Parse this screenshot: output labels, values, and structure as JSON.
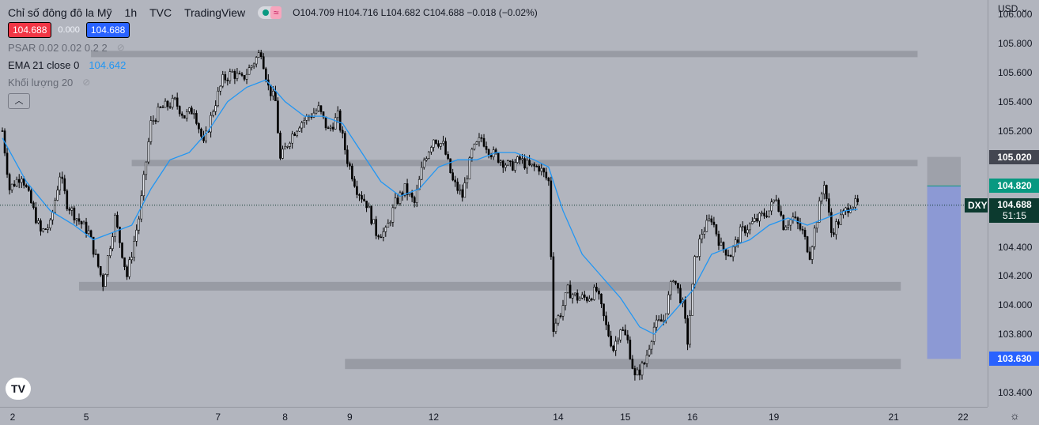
{
  "header": {
    "title": "Chỉ số đông đô la Mỹ",
    "interval": "1h",
    "source": "TVC",
    "publisher": "TradingView",
    "ohlc": "O104.709 H104.716 L104.682 C104.688 −0.018 (−0.02%)",
    "sell_price": "104.688",
    "spread": "0.000",
    "buy_price": "104.688"
  },
  "indicators": {
    "psar": "PSAR 0.02 0.02 0.2 2",
    "ema": "EMA 21 close 0",
    "ema_value": "104.642",
    "volume": "Khối lượng 20",
    "collapse_icon": "chevron-up-icon"
  },
  "currency": "USD",
  "symbol": "DXY",
  "countdown": "51:15",
  "logo": "TV",
  "colors": {
    "background": "#b2b5be",
    "candle": "#000000",
    "ema": "#2196f3",
    "zone": "#9598a1",
    "projection": "#8c99d4",
    "price_line": "#0c3a2f",
    "tag_green": "#089981",
    "tag_blue": "#2962ff",
    "tag_dark": "#434651"
  },
  "chart_data": {
    "type": "candlestick",
    "title": "Chỉ số đông đô la Mỹ",
    "ylim": [
      103.3,
      106.1
    ],
    "y_ticks": [
      "106.000",
      "105.800",
      "105.600",
      "105.400",
      "105.200",
      "105.020",
      "104.820",
      "104.688",
      "104.400",
      "104.200",
      "104.000",
      "103.800",
      "103.630",
      "103.400"
    ],
    "x_ticks": [
      {
        "label": "2",
        "bar": 0
      },
      {
        "label": "5",
        "bar": 35
      },
      {
        "label": "7",
        "bar": 90
      },
      {
        "label": "8",
        "bar": 118
      },
      {
        "label": "9",
        "bar": 145
      },
      {
        "label": "12",
        "bar": 180
      },
      {
        "label": "14",
        "bar": 232
      },
      {
        "label": "15",
        "bar": 260
      },
      {
        "label": "16",
        "bar": 288
      },
      {
        "label": "19",
        "bar": 322
      },
      {
        "label": "21",
        "bar": 372
      },
      {
        "label": "22",
        "bar": 401
      }
    ],
    "close_path": [
      {
        "bar": 0,
        "y": 105.2
      },
      {
        "bar": 3,
        "y": 104.8
      },
      {
        "bar": 8,
        "y": 104.9
      },
      {
        "bar": 12,
        "y": 104.7
      },
      {
        "bar": 16,
        "y": 104.5
      },
      {
        "bar": 20,
        "y": 104.55
      },
      {
        "bar": 24,
        "y": 104.9
      },
      {
        "bar": 27,
        "y": 104.7
      },
      {
        "bar": 31,
        "y": 104.6
      },
      {
        "bar": 36,
        "y": 104.5
      },
      {
        "bar": 42,
        "y": 104.15
      },
      {
        "bar": 47,
        "y": 104.6
      },
      {
        "bar": 52,
        "y": 104.2
      },
      {
        "bar": 57,
        "y": 104.6
      },
      {
        "bar": 62,
        "y": 105.25
      },
      {
        "bar": 66,
        "y": 105.35
      },
      {
        "bar": 72,
        "y": 105.4
      },
      {
        "bar": 76,
        "y": 105.3
      },
      {
        "bar": 80,
        "y": 105.35
      },
      {
        "bar": 84,
        "y": 105.1
      },
      {
        "bar": 88,
        "y": 105.35
      },
      {
        "bar": 92,
        "y": 105.55
      },
      {
        "bar": 96,
        "y": 105.6
      },
      {
        "bar": 100,
        "y": 105.55
      },
      {
        "bar": 104,
        "y": 105.65
      },
      {
        "bar": 108,
        "y": 105.75
      },
      {
        "bar": 111,
        "y": 105.5
      },
      {
        "bar": 114,
        "y": 105.4
      },
      {
        "bar": 116,
        "y": 105.0
      },
      {
        "bar": 120,
        "y": 105.15
      },
      {
        "bar": 124,
        "y": 105.25
      },
      {
        "bar": 128,
        "y": 105.3
      },
      {
        "bar": 132,
        "y": 105.35
      },
      {
        "bar": 136,
        "y": 105.2
      },
      {
        "bar": 140,
        "y": 105.3
      },
      {
        "bar": 144,
        "y": 105.0
      },
      {
        "bar": 148,
        "y": 104.8
      },
      {
        "bar": 152,
        "y": 104.7
      },
      {
        "bar": 156,
        "y": 104.5
      },
      {
        "bar": 160,
        "y": 104.5
      },
      {
        "bar": 164,
        "y": 104.7
      },
      {
        "bar": 168,
        "y": 104.8
      },
      {
        "bar": 172,
        "y": 104.7
      },
      {
        "bar": 176,
        "y": 105.0
      },
      {
        "bar": 180,
        "y": 105.15
      },
      {
        "bar": 184,
        "y": 105.1
      },
      {
        "bar": 188,
        "y": 104.85
      },
      {
        "bar": 192,
        "y": 104.75
      },
      {
        "bar": 196,
        "y": 105.05
      },
      {
        "bar": 200,
        "y": 105.15
      },
      {
        "bar": 204,
        "y": 105.05
      },
      {
        "bar": 208,
        "y": 105.0
      },
      {
        "bar": 212,
        "y": 104.95
      },
      {
        "bar": 216,
        "y": 105.0
      },
      {
        "bar": 220,
        "y": 104.95
      },
      {
        "bar": 224,
        "y": 104.95
      },
      {
        "bar": 228,
        "y": 104.85
      },
      {
        "bar": 230,
        "y": 103.85
      },
      {
        "bar": 233,
        "y": 103.95
      },
      {
        "bar": 236,
        "y": 104.1
      },
      {
        "bar": 240,
        "y": 104.05
      },
      {
        "bar": 244,
        "y": 104.05
      },
      {
        "bar": 248,
        "y": 104.1
      },
      {
        "bar": 252,
        "y": 103.85
      },
      {
        "bar": 255,
        "y": 103.7
      },
      {
        "bar": 258,
        "y": 103.85
      },
      {
        "bar": 261,
        "y": 103.75
      },
      {
        "bar": 264,
        "y": 103.5
      },
      {
        "bar": 268,
        "y": 103.6
      },
      {
        "bar": 272,
        "y": 103.85
      },
      {
        "bar": 276,
        "y": 103.9
      },
      {
        "bar": 280,
        "y": 104.2
      },
      {
        "bar": 284,
        "y": 104.0
      },
      {
        "bar": 286,
        "y": 103.75
      },
      {
        "bar": 289,
        "y": 104.3
      },
      {
        "bar": 292,
        "y": 104.5
      },
      {
        "bar": 296,
        "y": 104.6
      },
      {
        "bar": 300,
        "y": 104.4
      },
      {
        "bar": 304,
        "y": 104.35
      },
      {
        "bar": 308,
        "y": 104.5
      },
      {
        "bar": 312,
        "y": 104.55
      },
      {
        "bar": 316,
        "y": 104.6
      },
      {
        "bar": 320,
        "y": 104.65
      },
      {
        "bar": 323,
        "y": 104.75
      },
      {
        "bar": 326,
        "y": 104.55
      },
      {
        "bar": 330,
        "y": 104.6
      },
      {
        "bar": 334,
        "y": 104.5
      },
      {
        "bar": 337,
        "y": 104.35
      },
      {
        "bar": 340,
        "y": 104.6
      },
      {
        "bar": 343,
        "y": 104.85
      },
      {
        "bar": 346,
        "y": 104.5
      },
      {
        "bar": 350,
        "y": 104.6
      },
      {
        "bar": 354,
        "y": 104.7
      },
      {
        "bar": 357,
        "y": 104.69
      }
    ],
    "ema_path": [
      {
        "bar": 0,
        "y": 105.15
      },
      {
        "bar": 10,
        "y": 104.85
      },
      {
        "bar": 20,
        "y": 104.65
      },
      {
        "bar": 30,
        "y": 104.55
      },
      {
        "bar": 38,
        "y": 104.45
      },
      {
        "bar": 46,
        "y": 104.5
      },
      {
        "bar": 54,
        "y": 104.55
      },
      {
        "bar": 62,
        "y": 104.8
      },
      {
        "bar": 70,
        "y": 105.0
      },
      {
        "bar": 78,
        "y": 105.05
      },
      {
        "bar": 86,
        "y": 105.2
      },
      {
        "bar": 94,
        "y": 105.4
      },
      {
        "bar": 102,
        "y": 105.5
      },
      {
        "bar": 110,
        "y": 105.55
      },
      {
        "bar": 118,
        "y": 105.4
      },
      {
        "bar": 126,
        "y": 105.3
      },
      {
        "bar": 134,
        "y": 105.3
      },
      {
        "bar": 142,
        "y": 105.25
      },
      {
        "bar": 150,
        "y": 105.05
      },
      {
        "bar": 158,
        "y": 104.85
      },
      {
        "bar": 166,
        "y": 104.75
      },
      {
        "bar": 174,
        "y": 104.8
      },
      {
        "bar": 182,
        "y": 104.95
      },
      {
        "bar": 190,
        "y": 105.0
      },
      {
        "bar": 198,
        "y": 105.0
      },
      {
        "bar": 206,
        "y": 105.05
      },
      {
        "bar": 214,
        "y": 105.05
      },
      {
        "bar": 222,
        "y": 105.0
      },
      {
        "bar": 228,
        "y": 104.95
      },
      {
        "bar": 234,
        "y": 104.65
      },
      {
        "bar": 242,
        "y": 104.35
      },
      {
        "bar": 250,
        "y": 104.2
      },
      {
        "bar": 258,
        "y": 104.05
      },
      {
        "bar": 266,
        "y": 103.85
      },
      {
        "bar": 272,
        "y": 103.8
      },
      {
        "bar": 280,
        "y": 103.95
      },
      {
        "bar": 288,
        "y": 104.1
      },
      {
        "bar": 296,
        "y": 104.35
      },
      {
        "bar": 304,
        "y": 104.4
      },
      {
        "bar": 312,
        "y": 104.45
      },
      {
        "bar": 320,
        "y": 104.55
      },
      {
        "bar": 328,
        "y": 104.6
      },
      {
        "bar": 336,
        "y": 104.55
      },
      {
        "bar": 344,
        "y": 104.6
      },
      {
        "bar": 352,
        "y": 104.65
      },
      {
        "bar": 357,
        "y": 104.66
      }
    ],
    "zones": [
      {
        "bar_start": 37,
        "bar_end": 382,
        "y_top": 105.75,
        "y_bottom": 105.73
      },
      {
        "bar_start": 54,
        "bar_end": 382,
        "y_top": 105.0,
        "y_bottom": 104.98
      },
      {
        "bar_start": 32,
        "bar_end": 375,
        "y_top": 104.16,
        "y_bottom": 104.1
      },
      {
        "bar_start": 143,
        "bar_end": 375,
        "y_top": 103.63,
        "y_bottom": 103.56
      }
    ],
    "projection_box": {
      "bar_start": 386,
      "bar_end": 400,
      "top": 105.02,
      "entry": 104.82,
      "bottom": 103.63
    },
    "last_price": 104.688,
    "tags": [
      {
        "value": "105.020",
        "y": 105.02,
        "color": "#434651"
      },
      {
        "value": "104.820",
        "y": 104.82,
        "color": "#089981"
      },
      {
        "value": "103.630",
        "y": 103.63,
        "color": "#2962ff"
      }
    ]
  }
}
